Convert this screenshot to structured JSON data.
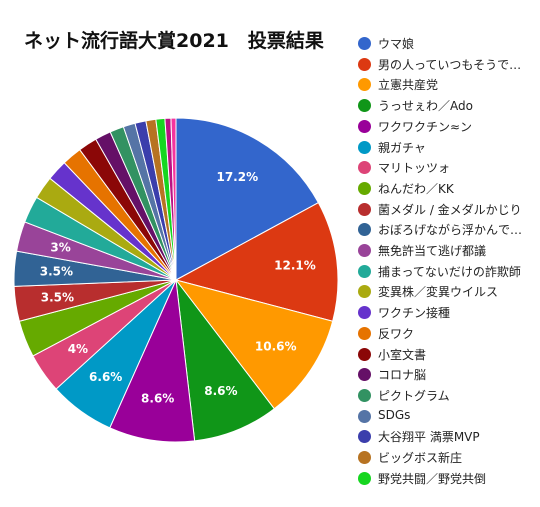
{
  "chart_data": {
    "type": "pie",
    "title": "ネット流行語大賞2021　投票結果",
    "legend_position": "right",
    "slices": [
      {
        "label": "ウマ娘",
        "value": 17.2,
        "color": "#3366cc",
        "data_label": "17.2%"
      },
      {
        "label": "男の人っていつもそうで…",
        "value": 12.1,
        "color": "#dc3912",
        "data_label": "12.1%"
      },
      {
        "label": "立憲共産党",
        "value": 10.6,
        "color": "#ff9900",
        "data_label": "10.6%"
      },
      {
        "label": "うっせぇわ／Ado",
        "value": 8.6,
        "color": "#109618",
        "data_label": "8.6%"
      },
      {
        "label": "ワクワクチン≈ン",
        "value": 8.6,
        "color": "#990099",
        "data_label": "8.6%"
      },
      {
        "label": "親ガチャ",
        "value": 6.6,
        "color": "#0099c6",
        "data_label": "6.6%"
      },
      {
        "label": "マリトッツォ",
        "value": 4,
        "color": "#dd4477",
        "data_label": "4%"
      },
      {
        "label": "ねんだわ／KK",
        "value": 3.7,
        "color": "#66aa00",
        "data_label": ""
      },
      {
        "label": "菌メダル / 金メダルかじり",
        "value": 3.5,
        "color": "#b82e2e",
        "data_label": "3.5%"
      },
      {
        "label": "おぼろげながら浮かんで…",
        "value": 3.5,
        "color": "#316395",
        "data_label": "3.5%"
      },
      {
        "label": "無免許当て逃げ都議",
        "value": 3,
        "color": "#994499",
        "data_label": "3%"
      },
      {
        "label": "捕まってないだけの詐欺師",
        "value": 2.7,
        "color": "#22aa99",
        "data_label": ""
      },
      {
        "label": "変異株／変異ウイルス",
        "value": 2.3,
        "color": "#aaaa11",
        "data_label": ""
      },
      {
        "label": "ワクチン接種",
        "value": 2.1,
        "color": "#6633cc",
        "data_label": ""
      },
      {
        "label": "反ワク",
        "value": 2,
        "color": "#e67300",
        "data_label": ""
      },
      {
        "label": "小室文書",
        "value": 1.9,
        "color": "#8b0707",
        "data_label": ""
      },
      {
        "label": "コロナ脳",
        "value": 1.6,
        "color": "#651067",
        "data_label": ""
      },
      {
        "label": "ピクトグラム",
        "value": 1.4,
        "color": "#329262",
        "data_label": ""
      },
      {
        "label": "SDGs",
        "value": 1.2,
        "color": "#5574a6",
        "data_label": ""
      },
      {
        "label": "大谷翔平 満票MVP",
        "value": 1.1,
        "color": "#3b3eac",
        "data_label": ""
      },
      {
        "label": "ビッグボス新庄",
        "value": 1,
        "color": "#b77322",
        "data_label": ""
      },
      {
        "label": "野党共闘／野党共倒",
        "value": 0.9,
        "color": "#16d620",
        "data_label": ""
      },
      {
        "label": "",
        "value": 0.6,
        "color": "#b91383",
        "data_label": ""
      },
      {
        "label": "",
        "value": 0.5,
        "color": "#f4359e",
        "data_label": ""
      }
    ]
  }
}
